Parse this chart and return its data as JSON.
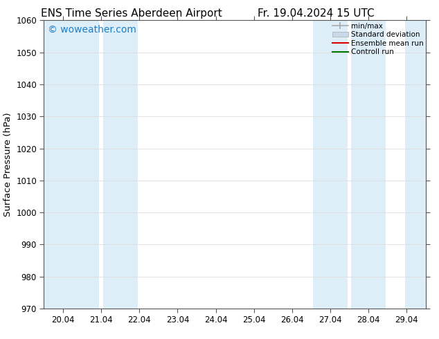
{
  "title_left": "ENS Time Series Aberdeen Airport",
  "title_right": "Fr. 19.04.2024 15 UTC",
  "ylabel": "Surface Pressure (hPa)",
  "ylim": [
    970,
    1060
  ],
  "yticks": [
    970,
    980,
    990,
    1000,
    1010,
    1020,
    1030,
    1040,
    1050,
    1060
  ],
  "xtick_labels": [
    "20.04",
    "21.04",
    "22.04",
    "23.04",
    "24.04",
    "25.04",
    "26.04",
    "27.04",
    "28.04",
    "29.04"
  ],
  "xtick_positions": [
    0,
    1,
    2,
    3,
    4,
    5,
    6,
    7,
    8,
    9
  ],
  "xlim": [
    -0.5,
    9.5
  ],
  "background_color": "#ffffff",
  "shaded_bands": [
    {
      "x_start": -0.5,
      "x_end": 0.95
    },
    {
      "x_start": 1.05,
      "x_end": 1.95
    },
    {
      "x_start": 6.55,
      "x_end": 7.45
    },
    {
      "x_start": 7.55,
      "x_end": 8.45
    },
    {
      "x_start": 8.95,
      "x_end": 9.5
    }
  ],
  "shaded_color": "#ddeef8",
  "watermark_text": "© woweather.com",
  "watermark_color": "#1a7fcc",
  "watermark_fontsize": 10,
  "legend_labels": [
    "min/max",
    "Standard deviation",
    "Ensemble mean run",
    "Controll run"
  ],
  "legend_minmax_color": "#aaaaaa",
  "legend_std_color": "#c8daea",
  "legend_ens_color": "#dd0000",
  "legend_ctrl_color": "#007700",
  "title_fontsize": 11,
  "tick_fontsize": 8.5,
  "ylabel_fontsize": 9.5,
  "grid_color": "#dddddd",
  "spine_color": "#555555"
}
